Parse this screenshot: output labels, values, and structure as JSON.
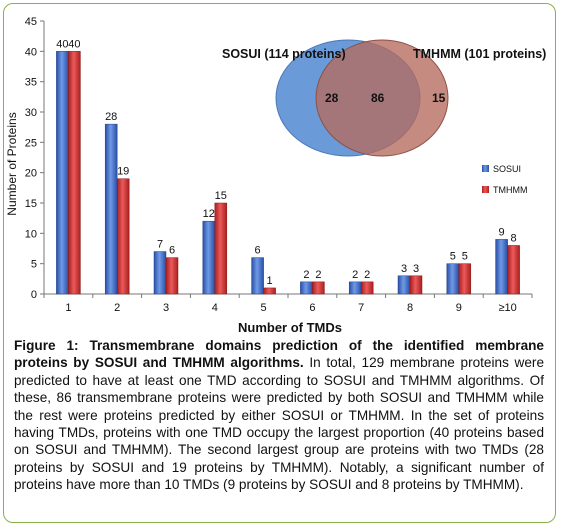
{
  "chart_data": {
    "type": "bar",
    "categories": [
      "1",
      "2",
      "3",
      "4",
      "5",
      "6",
      "7",
      "8",
      "9",
      "≥10"
    ],
    "series": [
      {
        "name": "SOSUI",
        "values": [
          40,
          28,
          7,
          12,
          6,
          2,
          2,
          3,
          5,
          9
        ],
        "color": "#3a67c8"
      },
      {
        "name": "TMHMM",
        "values": [
          40,
          19,
          6,
          15,
          1,
          2,
          2,
          3,
          5,
          8
        ],
        "color": "#d03030"
      }
    ],
    "xlabel": "Number of TMDs",
    "ylabel": "Number of Proteins",
    "ylim": [
      0,
      45
    ],
    "yticks": [
      0,
      5,
      10,
      15,
      20,
      25,
      30,
      35,
      40,
      45
    ],
    "grid": false,
    "legend": "right",
    "venn": {
      "left_label": "SOSUI (114 proteins)",
      "right_label": "TMHMM (101 proteins)",
      "left_only": "28",
      "both": "86",
      "right_only": "15",
      "left_color": "#5b8fd4",
      "right_color": "#b56a5e"
    }
  },
  "caption": {
    "bold": "Figure 1: Transmembrane domains prediction of the identified membrane proteins by SOSUI and TMHMM algorithms.",
    "text": " In total, 129 membrane proteins were predicted to have at least one TMD according to SOSUI and TMHMM algorithms. Of these, 86 transmembrane proteins were predicted by both SOSUI and TMHMM while the rest were proteins predicted by either SOSUI or TMHMM. In the set of proteins having TMDs, proteins with one TMD occupy the largest proportion (40 proteins based on SOSUI and TMHMM). The second largest group are proteins with two TMDs  (28 proteins by SOSUI and 19 proteins by TMHMM). Notably, a significant number of proteins have more than 10 TMDs (9 proteins by SOSUI and 8 proteins by TMHMM)."
  }
}
